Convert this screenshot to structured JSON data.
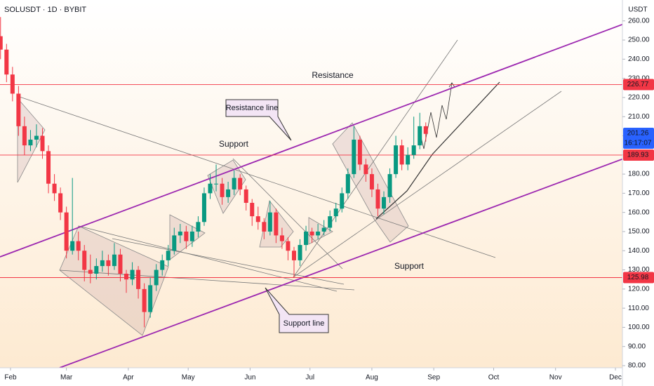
{
  "chart_data": {
    "type": "candlestick",
    "symbol": "SOLUSDT · 1D · BYBIT",
    "y_unit": "USDT",
    "xlim": [
      -5.27,
      306.5
    ],
    "ylim": [
      78.9,
      270.9
    ],
    "xticks": [
      {
        "value": 0,
        "label": "Feb"
      },
      {
        "value": 28,
        "label": "Mar"
      },
      {
        "value": 59,
        "label": "Apr"
      },
      {
        "value": 89,
        "label": "May"
      },
      {
        "value": 120,
        "label": "Jun"
      },
      {
        "value": 150,
        "label": "Jul"
      },
      {
        "value": 181,
        "label": "Aug"
      },
      {
        "value": 212,
        "label": "Sep"
      },
      {
        "value": 242,
        "label": "Oct"
      },
      {
        "value": 273,
        "label": "Nov"
      },
      {
        "value": 303,
        "label": "Dec"
      }
    ],
    "yticks": [
      {
        "value": 80,
        "label": "80.00"
      },
      {
        "value": 90,
        "label": "90.00"
      },
      {
        "value": 100,
        "label": "100.00"
      },
      {
        "value": 110,
        "label": "110.00"
      },
      {
        "value": 120,
        "label": "120.00"
      },
      {
        "value": 130,
        "label": "130.00"
      },
      {
        "value": 140,
        "label": "140.00"
      },
      {
        "value": 150,
        "label": "150.00"
      },
      {
        "value": 160,
        "label": "160.00"
      },
      {
        "value": 170,
        "label": "170.00"
      },
      {
        "value": 180,
        "label": "180.00"
      },
      {
        "value": 190,
        "label": "190.00"
      },
      {
        "value": 200,
        "label": "200.00"
      },
      {
        "value": 210,
        "label": "210.00"
      },
      {
        "value": 220,
        "label": "220.00"
      },
      {
        "value": 230,
        "label": "230.00"
      },
      {
        "value": 240,
        "label": "240.00"
      },
      {
        "value": 250,
        "label": "250.00"
      },
      {
        "value": 260,
        "label": "260.00"
      }
    ],
    "up_color": "#089981",
    "down_color": "#f23645",
    "x": [
      -5,
      -2,
      1,
      4,
      7,
      10,
      13,
      16,
      19,
      22,
      25,
      28,
      31,
      34,
      37,
      40,
      43,
      46,
      49,
      52,
      55,
      58,
      61,
      64,
      67,
      70,
      73,
      76,
      79,
      82,
      85,
      88,
      91,
      94,
      97,
      100,
      103,
      106,
      109,
      112,
      115,
      118,
      121,
      124,
      127,
      130,
      133,
      136,
      139,
      142,
      145,
      148,
      151,
      154,
      157,
      160,
      163,
      166,
      169,
      172,
      175,
      178,
      181,
      184,
      187,
      190,
      193,
      196,
      199,
      202,
      205,
      208
    ],
    "open": [
      252,
      245,
      232,
      222,
      205,
      195,
      198,
      200,
      192,
      175,
      170,
      160,
      140,
      145,
      140,
      130,
      128,
      132,
      135,
      132,
      138,
      128,
      125,
      130,
      120,
      108,
      122,
      130,
      135,
      140,
      148,
      150,
      145,
      150,
      155,
      170,
      175,
      175,
      168,
      172,
      178,
      172,
      165,
      158,
      155,
      150,
      160,
      148,
      145,
      140,
      135,
      143,
      150,
      148,
      150,
      152,
      158,
      162,
      170,
      180,
      198,
      185,
      180,
      172,
      162,
      168,
      180,
      195,
      185,
      190,
      195,
      205
    ],
    "high": [
      262,
      248,
      236,
      226,
      210,
      203,
      206,
      204,
      195,
      180,
      173,
      163,
      178,
      150,
      143,
      138,
      136,
      140,
      138,
      144,
      141,
      130,
      134,
      132,
      123,
      126,
      133,
      138,
      143,
      152,
      154,
      153,
      153,
      158,
      173,
      180,
      185,
      178,
      176,
      182,
      180,
      174,
      167,
      163,
      157,
      166,
      162,
      152,
      147,
      142,
      146,
      153,
      152,
      154,
      156,
      161,
      165,
      173,
      183,
      205,
      200,
      188,
      183,
      175,
      171,
      183,
      200,
      198,
      194,
      210,
      212,
      207
    ],
    "low": [
      240,
      228,
      218,
      200,
      190,
      192,
      194,
      188,
      170,
      166,
      156,
      136,
      138,
      135,
      124,
      123,
      125,
      129,
      127,
      130,
      124,
      118,
      122,
      115,
      100,
      105,
      119,
      127,
      132,
      138,
      144,
      141,
      142,
      147,
      153,
      167,
      171,
      164,
      165,
      169,
      169,
      161,
      153,
      151,
      146,
      148,
      144,
      141,
      135,
      126,
      132,
      140,
      144,
      146,
      148,
      150,
      155,
      160,
      167,
      178,
      182,
      176,
      168,
      158,
      159,
      165,
      178,
      182,
      182,
      188,
      193,
      197
    ],
    "close": [
      245,
      232,
      222,
      205,
      195,
      198,
      200,
      192,
      175,
      170,
      160,
      140,
      145,
      140,
      130,
      128,
      132,
      135,
      132,
      138,
      128,
      125,
      130,
      120,
      108,
      122,
      130,
      135,
      140,
      148,
      150,
      145,
      150,
      155,
      170,
      175,
      175,
      168,
      172,
      178,
      172,
      165,
      158,
      155,
      150,
      160,
      148,
      145,
      140,
      135,
      143,
      150,
      148,
      150,
      152,
      158,
      162,
      170,
      180,
      198,
      185,
      180,
      172,
      162,
      168,
      180,
      195,
      185,
      190,
      195,
      205,
      201
    ],
    "levels": [
      {
        "value": 226.77,
        "color": "#f23645"
      },
      {
        "value": 189.93,
        "color": "#f23645"
      },
      {
        "value": 125.98,
        "color": "#f23645"
      }
    ],
    "last_price": {
      "value": 201.26,
      "countdown": "16:17:07",
      "color": "#2962ff"
    },
    "annotations": [
      "Resistance",
      "Support",
      "Support",
      "Resistance line",
      "Support line"
    ]
  }
}
